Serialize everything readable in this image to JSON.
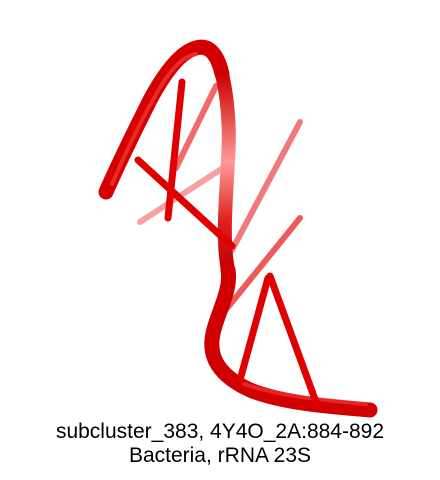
{
  "figure": {
    "caption_line1": "subcluster_383, 4Y4O_2A:884-892",
    "caption_line2": "Bacteria, rRNA 23S",
    "backbone_color": "#e00000",
    "highlight_color": "#ff8a8a"
  }
}
